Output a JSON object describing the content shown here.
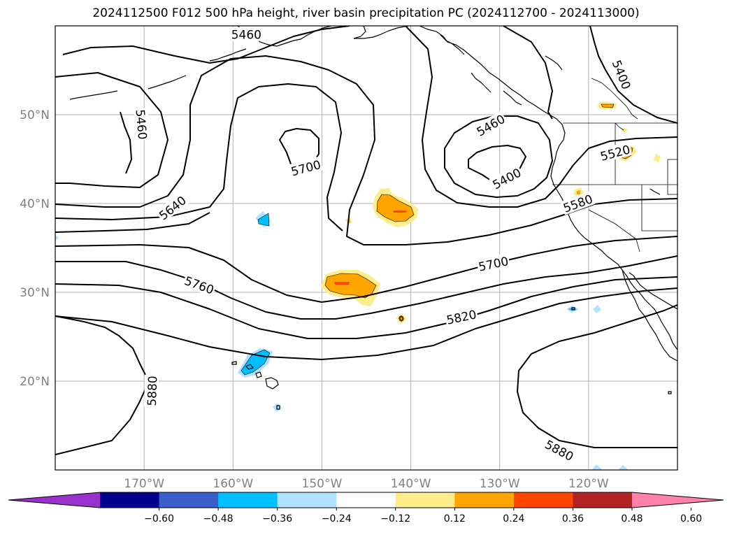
{
  "title": "2024112500 F012 500 hPa height, river basin precipitation PC (2024112700 - 2024113000)",
  "map": {
    "lon_range": [
      -180,
      -110
    ],
    "lat_range": [
      10,
      60
    ],
    "lat_ticks": [
      {
        "lat": 50,
        "label": "50°N"
      },
      {
        "lat": 40,
        "label": "40°N"
      },
      {
        "lat": 30,
        "label": "30°N"
      },
      {
        "lat": 20,
        "label": "20°N"
      }
    ],
    "lon_ticks": [
      {
        "lon": -170,
        "label": "170°W"
      },
      {
        "lon": -160,
        "label": "160°W"
      },
      {
        "lon": -150,
        "label": "150°W"
      },
      {
        "lon": -140,
        "label": "140°W"
      },
      {
        "lon": -130,
        "label": "130°W"
      },
      {
        "lon": -120,
        "label": "120°W"
      }
    ],
    "contour_labels": [
      {
        "text": "5460",
        "lon": -158.5,
        "lat": 59.0,
        "rot": 0
      },
      {
        "text": "5460",
        "lon": -170.3,
        "lat": 48.9,
        "rot": 85
      },
      {
        "text": "5400",
        "lon": -116.3,
        "lat": 54.5,
        "rot": 68
      },
      {
        "text": "5700",
        "lon": -151.8,
        "lat": 44.0,
        "rot": -15
      },
      {
        "text": "5460",
        "lon": -131.0,
        "lat": 48.8,
        "rot": -30
      },
      {
        "text": "5640",
        "lon": -166.8,
        "lat": 39.5,
        "rot": -38
      },
      {
        "text": "5400",
        "lon": -129.2,
        "lat": 42.8,
        "rot": -28
      },
      {
        "text": "5520",
        "lon": -117.0,
        "lat": 45.7,
        "rot": -15
      },
      {
        "text": "5580",
        "lon": -121.2,
        "lat": 40.0,
        "rot": -20
      },
      {
        "text": "5700",
        "lon": -130.7,
        "lat": 33.2,
        "rot": -12
      },
      {
        "text": "5760",
        "lon": -163.8,
        "lat": 30.8,
        "rot": 20
      },
      {
        "text": "5820",
        "lon": -134.3,
        "lat": 27.2,
        "rot": -12
      },
      {
        "text": "5880",
        "lon": -169.1,
        "lat": 18.9,
        "rot": -88
      },
      {
        "text": "5880",
        "lon": -123.3,
        "lat": 12.2,
        "rot": 28
      }
    ]
  },
  "colorbar": {
    "colors": [
      "#9932cc",
      "#00008b",
      "#3a5fcd",
      "#00bfff",
      "#b0e2ff",
      "#ffffff",
      "#ffec8b",
      "#ffa500",
      "#ff4500",
      "#b22222",
      "#ff82ab"
    ],
    "tick_labels": [
      "−0.60",
      "−0.48",
      "−0.36",
      "−0.24",
      "−0.12",
      "0.12",
      "0.24",
      "0.36",
      "0.48",
      "0.60"
    ]
  },
  "precip_colors": {
    "light_positive": "#ffec8b",
    "positive": "#ffa500",
    "strong_positive": "#ff4500",
    "light_negative": "#b0e2ff",
    "negative": "#00bfff"
  }
}
